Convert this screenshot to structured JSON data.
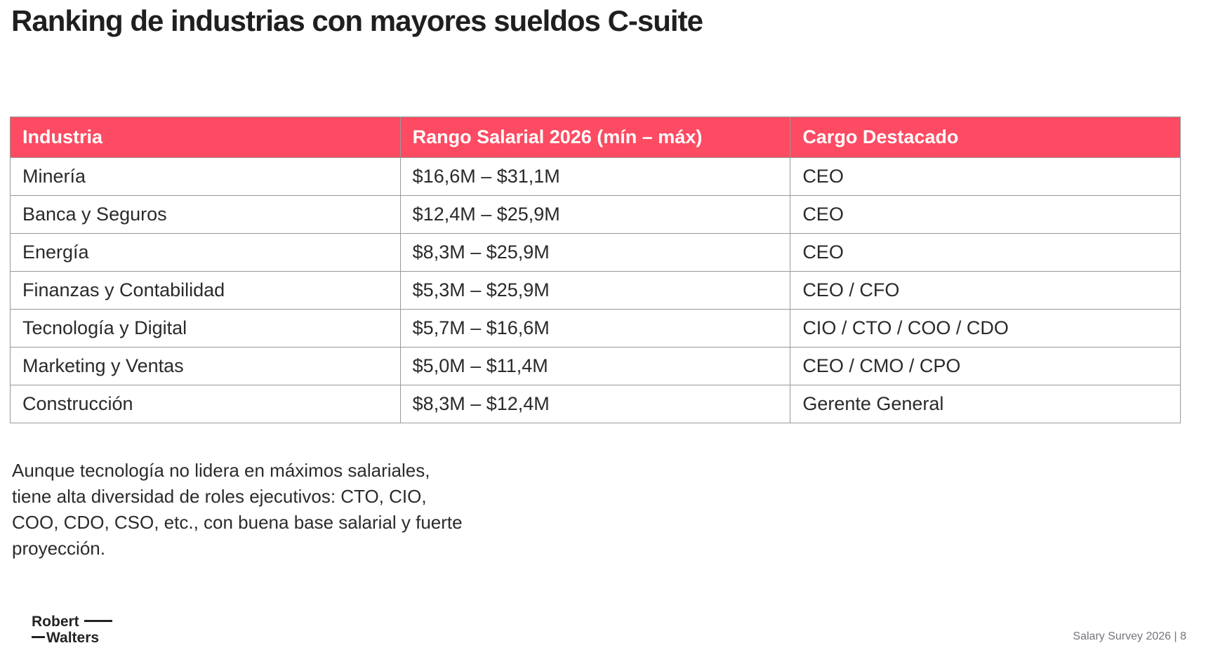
{
  "page": {
    "title": "Ranking de industrias con mayores sueldos C-suite"
  },
  "colors": {
    "header_background": "#FC4B62",
    "header_text": "#ffffff",
    "table_border": "#989898",
    "body_text": "#2a2a2a",
    "footer_text": "#73737e"
  },
  "table": {
    "headers": [
      "Industria",
      "Rango Salarial 2026 (mín – máx)",
      "Cargo Destacado"
    ],
    "rows": [
      {
        "industria": "Minería",
        "rango": "$16,6M – $31,1M",
        "cargo": "CEO"
      },
      {
        "industria": "Banca y Seguros",
        "rango": "$12,4M – $25,9M",
        "cargo": "CEO"
      },
      {
        "industria": "Energía",
        "rango": "$8,3M – $25,9M",
        "cargo": "CEO"
      },
      {
        "industria": "Finanzas y Contabilidad",
        "rango": "$5,3M – $25,9M",
        "cargo": "CEO / CFO"
      },
      {
        "industria": "Tecnología y Digital",
        "rango": "$5,7M – $16,6M",
        "cargo": "CIO / CTO / COO / CDO"
      },
      {
        "industria": "Marketing y Ventas",
        "rango": "$5,0M – $11,4M",
        "cargo": "CEO / CMO / CPO"
      },
      {
        "industria": "Construcción",
        "rango": "$8,3M – $12,4M",
        "cargo": "Gerente General"
      }
    ]
  },
  "footnote": {
    "lines": [
      "Aunque tecnología no lidera en máximos salariales,",
      "tiene alta diversidad de roles ejecutivos: CTO, CIO,",
      "COO, CDO, CSO, etc., con buena base salarial y fuerte",
      "proyección."
    ]
  },
  "footer": {
    "logo": {
      "line1": "Robert",
      "line2": "Walters"
    },
    "page_label": "Salary Survey 2026 | 8"
  }
}
